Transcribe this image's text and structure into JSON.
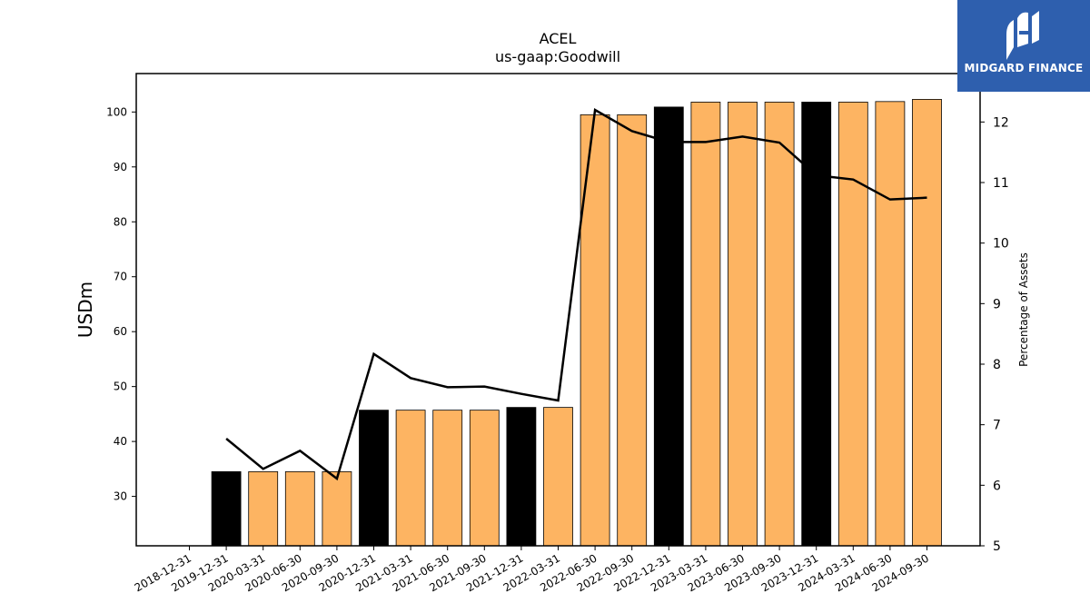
{
  "chart_data": {
    "type": "bar",
    "title": "ACEL",
    "subtitle": "us-gaap:Goodwill",
    "ylabel": "USDm",
    "ylabel_right": "Percentage of Assets",
    "ylim": [
      21,
      107
    ],
    "ylim_right": [
      5,
      12.8
    ],
    "yticks": [
      30,
      40,
      50,
      60,
      70,
      80,
      90,
      100
    ],
    "yticks_right": [
      5,
      6,
      7,
      8,
      9,
      10,
      11,
      12
    ],
    "categories": [
      "2018-12-31",
      "2019-12-31",
      "2020-03-31",
      "2020-06-30",
      "2020-09-30",
      "2020-12-31",
      "2021-03-31",
      "2021-06-30",
      "2021-09-30",
      "2021-12-31",
      "2022-03-31",
      "2022-06-30",
      "2022-09-30",
      "2022-12-31",
      "2023-03-31",
      "2023-06-30",
      "2023-09-30",
      "2023-12-31",
      "2024-03-31",
      "2024-06-30",
      "2024-09-30"
    ],
    "series": [
      {
        "type": "bar",
        "values": [
          null,
          34.5,
          34.5,
          34.5,
          34.5,
          45.7,
          45.7,
          45.7,
          45.7,
          46.2,
          46.2,
          99.5,
          99.5,
          100.9,
          101.8,
          101.8,
          101.8,
          101.8,
          101.8,
          101.9,
          102.3
        ],
        "annual_flags": [
          false,
          true,
          false,
          false,
          false,
          true,
          false,
          false,
          false,
          true,
          false,
          false,
          false,
          true,
          false,
          false,
          false,
          true,
          false,
          false,
          false
        ]
      },
      {
        "type": "line",
        "axis": "right",
        "values": [
          null,
          6.77,
          6.27,
          6.57,
          6.11,
          8.17,
          7.77,
          7.62,
          7.63,
          7.51,
          7.4,
          12.2,
          11.85,
          11.67,
          11.67,
          11.76,
          11.66,
          11.12,
          11.05,
          10.72,
          10.75
        ]
      }
    ],
    "colors": {
      "annual_bar": "#000000",
      "quarter_bar": "#fdb462",
      "line": "#000000"
    },
    "grid": false
  },
  "logo": {
    "text": "MIDGARD FINANCE",
    "bg": "#2e5fae"
  }
}
